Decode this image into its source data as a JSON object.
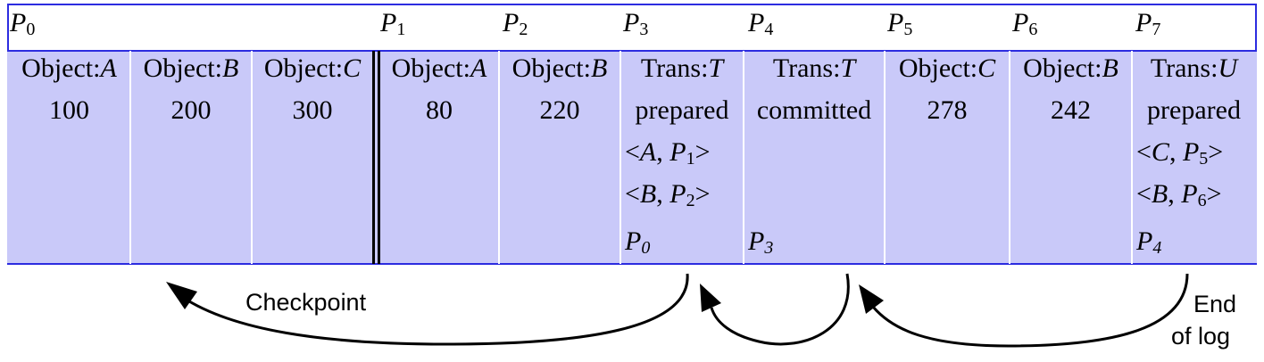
{
  "pointers": [
    {
      "letter": "P",
      "index": "0"
    },
    {
      "letter": "P",
      "index": "1"
    },
    {
      "letter": "P",
      "index": "2"
    },
    {
      "letter": "P",
      "index": "3"
    },
    {
      "letter": "P",
      "index": "4"
    },
    {
      "letter": "P",
      "index": "5"
    },
    {
      "letter": "P",
      "index": "6"
    },
    {
      "letter": "P",
      "index": "7"
    }
  ],
  "records": [
    {
      "type": "Object:",
      "name": "A",
      "value": "100"
    },
    {
      "type": "Object:",
      "name": "B",
      "value": "200"
    },
    {
      "type": "Object:",
      "name": "C",
      "value": "300"
    },
    {
      "type": "Object:",
      "name": "A",
      "value": "80"
    },
    {
      "type": "Object:",
      "name": "B",
      "value": "220"
    },
    {
      "type": "Trans:",
      "name": "T",
      "value": "prepared",
      "entries": [
        {
          "open": "<",
          "obj": "A",
          "sep": ", ",
          "ptr": "P",
          "idx": "1",
          "close": ">"
        },
        {
          "open": "<",
          "obj": "B",
          "sep": ", ",
          "ptr": "P",
          "idx": "2",
          "close": ">"
        }
      ],
      "prev": {
        "ptr": "P",
        "idx": "0"
      }
    },
    {
      "type": "Trans:",
      "name": "T",
      "value": "committed",
      "prev": {
        "ptr": "P",
        "idx": "3"
      }
    },
    {
      "type": "Object:",
      "name": "C",
      "value": "278"
    },
    {
      "type": "Object:",
      "name": "B",
      "value": "242"
    },
    {
      "type": "Trans:",
      "name": "U",
      "value": "prepared",
      "entries": [
        {
          "open": "<",
          "obj": "C",
          "sep": ", ",
          "ptr": "P",
          "idx": "5",
          "close": ">"
        },
        {
          "open": "<",
          "obj": "B",
          "sep": ", ",
          "ptr": "P",
          "idx": "6",
          "close": ">"
        }
      ],
      "prev": {
        "ptr": "P",
        "idx": "4"
      }
    }
  ],
  "labels": {
    "checkpoint": "Checkpoint",
    "end_of_log_line1": "End",
    "end_of_log_line2": "of log"
  },
  "colors": {
    "band": "#c9c9f9",
    "rule": "#2c2ce0",
    "separator": "#ffffff"
  }
}
